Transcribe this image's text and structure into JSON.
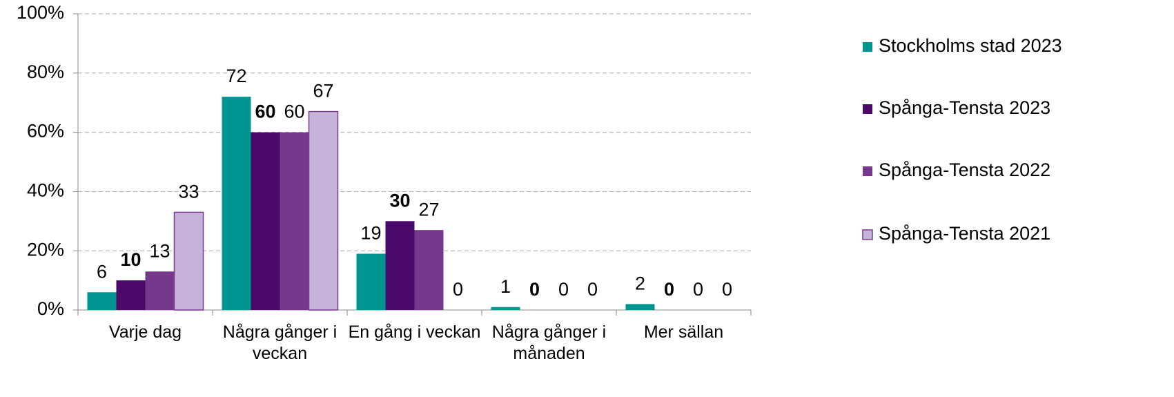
{
  "chart_data": {
    "type": "bar",
    "categories": [
      "Varje dag",
      "Några gånger i veckan",
      "En gång i veckan",
      "Några gånger i månaden",
      "Mer sällan"
    ],
    "series": [
      {
        "name": "Stockholms stad 2023",
        "color": "#009590",
        "values": [
          6,
          72,
          19,
          1,
          2
        ]
      },
      {
        "name": "Spånga-Tensta 2023",
        "color": "#4b0a6a",
        "values": [
          10,
          60,
          30,
          0,
          0
        ]
      },
      {
        "name": "Spånga-Tensta 2022",
        "color": "#76388c",
        "values": [
          13,
          60,
          27,
          0,
          0
        ]
      },
      {
        "name": "Spånga-Tensta 2021",
        "color": "#c5b3d9",
        "values": [
          33,
          67,
          0,
          0,
          0
        ]
      }
    ],
    "ylim": [
      0,
      100
    ],
    "yticks": [
      {
        "value": 0,
        "label": "0%"
      },
      {
        "value": 20,
        "label": "20%"
      },
      {
        "value": 40,
        "label": "40%"
      },
      {
        "value": 60,
        "label": "60%"
      },
      {
        "value": 80,
        "label": "80%"
      },
      {
        "value": 100,
        "label": "100%"
      }
    ],
    "grid": true,
    "legend": "right"
  }
}
